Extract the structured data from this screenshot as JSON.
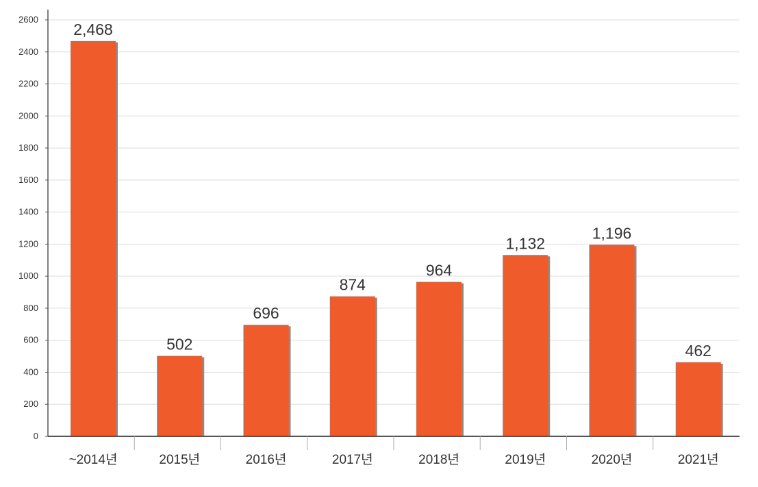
{
  "chart_data": {
    "type": "bar",
    "title": "",
    "xlabel": "",
    "ylabel": "",
    "categories": [
      "~2014년",
      "2015년",
      "2016년",
      "2017년",
      "2018년",
      "2019년",
      "2020년",
      "2021년"
    ],
    "values": [
      2468,
      502,
      696,
      874,
      964,
      1132,
      1196,
      462
    ],
    "value_labels": [
      "2,468",
      "502",
      "696",
      "874",
      "964",
      "1,132",
      "1,196",
      "462"
    ],
    "ylim": [
      0,
      2600
    ],
    "yticks": [
      0,
      200,
      400,
      600,
      800,
      1000,
      1200,
      1400,
      1600,
      1800,
      2000,
      2200,
      2400,
      2600
    ],
    "grid": true,
    "legend": "none",
    "bar_color": "#ef5b2a",
    "bar_shadow_color": "#8a8a8a",
    "axis_color": "#555555",
    "grid_color": "#dddddd",
    "text_color": "#333333"
  }
}
